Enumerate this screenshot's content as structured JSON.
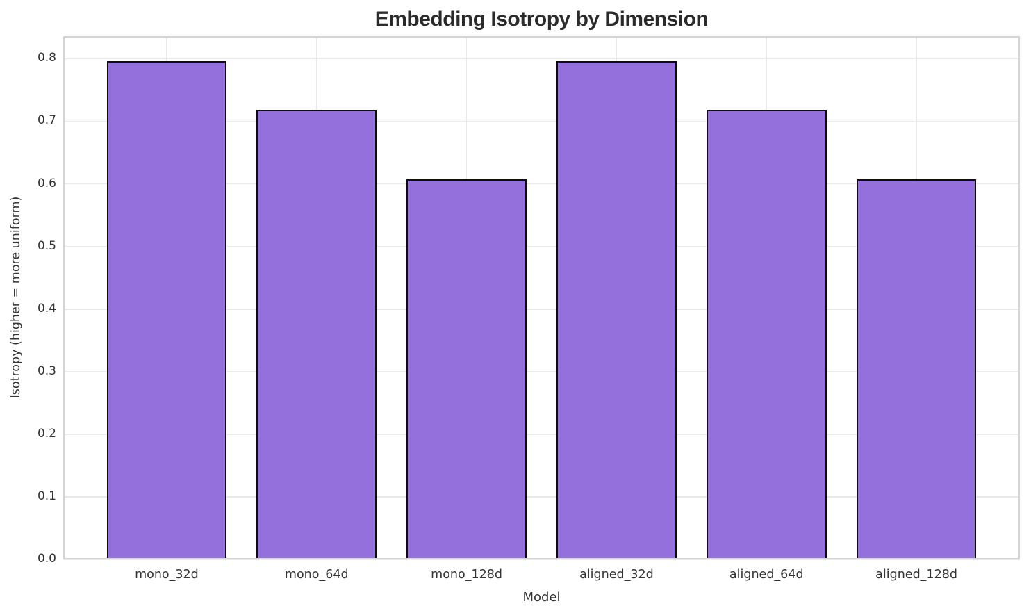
{
  "chart_data": {
    "type": "bar",
    "title": "Embedding Isotropy by Dimension",
    "xlabel": "Model",
    "ylabel": "Isotropy (higher = more uniform)",
    "categories": [
      "mono_32d",
      "mono_64d",
      "mono_128d",
      "aligned_32d",
      "aligned_64d",
      "aligned_128d"
    ],
    "values": [
      0.796,
      0.718,
      0.607,
      0.796,
      0.718,
      0.607
    ],
    "yticks": [
      0.0,
      0.1,
      0.2,
      0.3,
      0.4,
      0.5,
      0.6,
      0.7,
      0.8
    ],
    "ytick_labels": [
      "0.0",
      "0.1",
      "0.2",
      "0.3",
      "0.4",
      "0.5",
      "0.6",
      "0.7",
      "0.8"
    ],
    "ylim": [
      0,
      0.836
    ],
    "xlim": [
      -0.69,
      5.69
    ],
    "bar_width": 0.8,
    "grid": true,
    "legend_position": "none",
    "colors": {
      "bar_fill": "#9370DB",
      "bar_edge": "#0d0d0d",
      "grid": "#e9e9e9",
      "spine": "#d4d4d4",
      "title_text": "#2b2b2b",
      "tick_text": "#333333",
      "background": "#ffffff"
    }
  }
}
